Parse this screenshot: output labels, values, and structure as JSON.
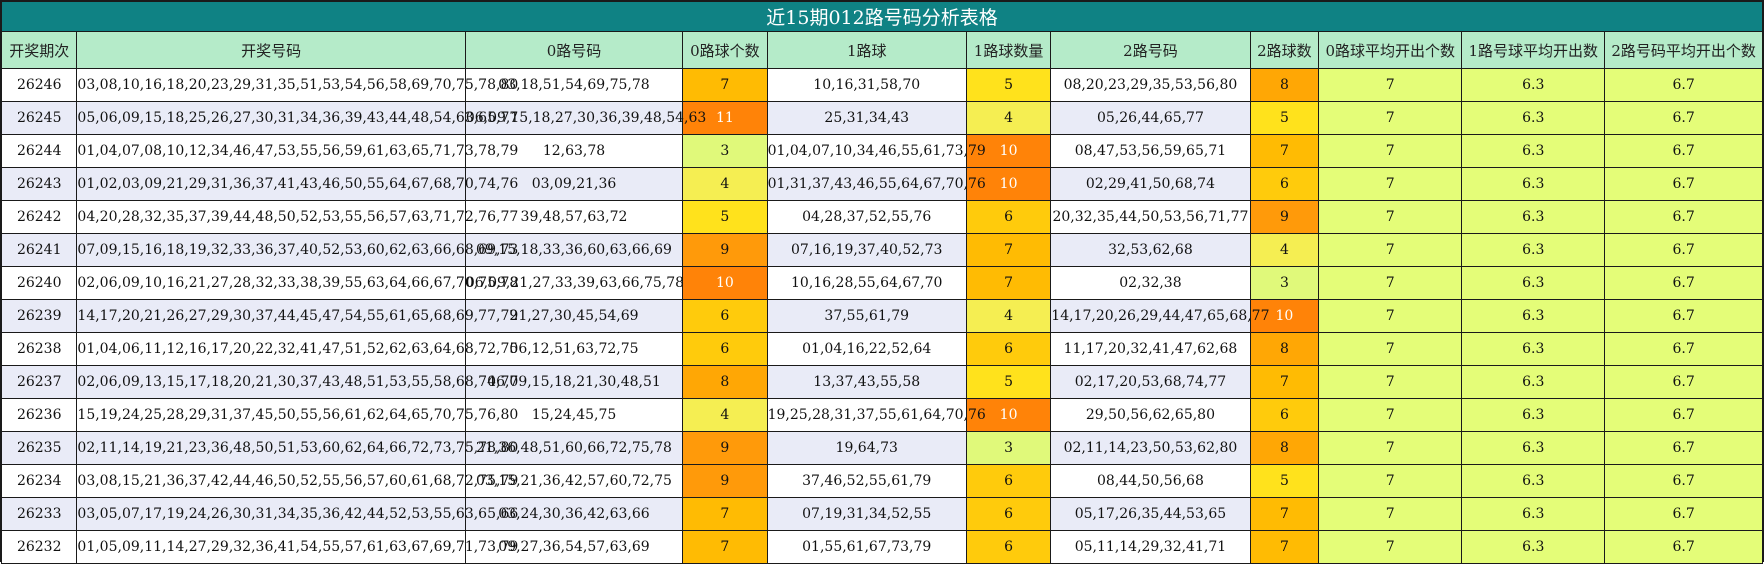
{
  "title": "近15期012路号码分析表格",
  "headers": [
    "开奖期次",
    "开奖号码",
    "0路号码",
    "0路球个数",
    "1路球",
    "1路球数量",
    "2路号码",
    "2路球数",
    "0路球平均开出个数",
    "1路号球平均开出数",
    "2路号码平均开出个数"
  ],
  "rows": [
    [
      "26246",
      "03,08,10,16,18,20,23,29,31,35,51,53,54,56,58,69,70,75,78,80",
      "03,18,51,54,69,75,78",
      "7",
      "10,16,31,58,70",
      "5",
      "08,20,23,29,35,53,56,80",
      "8",
      "7",
      "6.3",
      "6.7"
    ],
    [
      "26245",
      "05,06,09,15,18,25,26,27,30,31,34,36,39,43,44,48,54,63,65,77",
      "06,09,15,18,27,30,36,39,48,54,63",
      "11",
      "25,31,34,43",
      "4",
      "05,26,44,65,77",
      "5",
      "7",
      "6.3",
      "6.7"
    ],
    [
      "26244",
      "01,04,07,08,10,12,34,46,47,53,55,56,59,61,63,65,71,73,78,79",
      "12,63,78",
      "3",
      "01,04,07,10,34,46,55,61,73,79",
      "10",
      "08,47,53,56,59,65,71",
      "7",
      "7",
      "6.3",
      "6.7"
    ],
    [
      "26243",
      "01,02,03,09,21,29,31,36,37,41,43,46,50,55,64,67,68,70,74,76",
      "03,09,21,36",
      "4",
      "01,31,37,43,46,55,64,67,70,76",
      "10",
      "02,29,41,50,68,74",
      "6",
      "7",
      "6.3",
      "6.7"
    ],
    [
      "26242",
      "04,20,28,32,35,37,39,44,48,50,52,53,55,56,57,63,71,72,76,77",
      "39,48,57,63,72",
      "5",
      "04,28,37,52,55,76",
      "6",
      "20,32,35,44,50,53,56,71,77",
      "9",
      "7",
      "6.3",
      "6.7"
    ],
    [
      "26241",
      "07,09,15,16,18,19,32,33,36,37,40,52,53,60,62,63,66,68,69,73",
      "09,15,18,33,36,60,63,66,69",
      "9",
      "07,16,19,37,40,52,73",
      "7",
      "32,53,62,68",
      "4",
      "7",
      "6.3",
      "6.7"
    ],
    [
      "26240",
      "02,06,09,10,16,21,27,28,32,33,38,39,55,63,64,66,67,70,75,78",
      "06,09,21,27,33,39,63,66,75,78",
      "10",
      "10,16,28,55,64,67,70",
      "7",
      "02,32,38",
      "3",
      "7",
      "6.3",
      "6.7"
    ],
    [
      "26239",
      "14,17,20,21,26,27,29,30,37,44,45,47,54,55,61,65,68,69,77,79",
      "21,27,30,45,54,69",
      "6",
      "37,55,61,79",
      "4",
      "14,17,20,26,29,44,47,65,68,77",
      "10",
      "7",
      "6.3",
      "6.7"
    ],
    [
      "26238",
      "01,04,06,11,12,16,17,20,22,32,41,47,51,52,62,63,64,68,72,75",
      "06,12,51,63,72,75",
      "6",
      "01,04,16,22,52,64",
      "6",
      "11,17,20,32,41,47,62,68",
      "8",
      "7",
      "6.3",
      "6.7"
    ],
    [
      "26237",
      "02,06,09,13,15,17,18,20,21,30,37,43,48,51,53,55,58,68,74,77",
      "06,09,15,18,21,30,48,51",
      "8",
      "13,37,43,55,58",
      "5",
      "02,17,20,53,68,74,77",
      "7",
      "7",
      "6.3",
      "6.7"
    ],
    [
      "26236",
      "15,19,24,25,28,29,31,37,45,50,55,56,61,62,64,65,70,75,76,80",
      "15,24,45,75",
      "4",
      "19,25,28,31,37,55,61,64,70,76",
      "10",
      "29,50,56,62,65,80",
      "6",
      "7",
      "6.3",
      "6.7"
    ],
    [
      "26235",
      "02,11,14,19,21,23,36,48,50,51,53,60,62,64,66,72,73,75,78,80",
      "21,36,48,51,60,66,72,75,78",
      "9",
      "19,64,73",
      "3",
      "02,11,14,23,50,53,62,80",
      "8",
      "7",
      "6.3",
      "6.7"
    ],
    [
      "26234",
      "03,08,15,21,36,37,42,44,46,50,52,55,56,57,60,61,68,72,75,79",
      "03,15,21,36,42,57,60,72,75",
      "9",
      "37,46,52,55,61,79",
      "6",
      "08,44,50,56,68",
      "5",
      "7",
      "6.3",
      "6.7"
    ],
    [
      "26233",
      "03,05,07,17,19,24,26,30,31,34,35,36,42,44,52,53,55,63,65,66",
      "03,24,30,36,42,63,66",
      "7",
      "07,19,31,34,52,55",
      "6",
      "05,17,26,35,44,53,65",
      "7",
      "7",
      "6.3",
      "6.7"
    ],
    [
      "26232",
      "01,05,09,11,14,27,29,32,36,41,54,55,57,61,63,67,69,71,73,79",
      "09,27,36,54,57,63,69",
      "7",
      "01,55,61,67,73,79",
      "6",
      "05,11,14,29,32,41,71",
      "7",
      "7",
      "6.3",
      "6.7"
    ]
  ],
  "colors": {
    "title_bg": "#0f8284",
    "header_bg": "#b5ebc9",
    "row_even_bg": "#e9ebf7",
    "avg_bg": "#e4fd78"
  }
}
